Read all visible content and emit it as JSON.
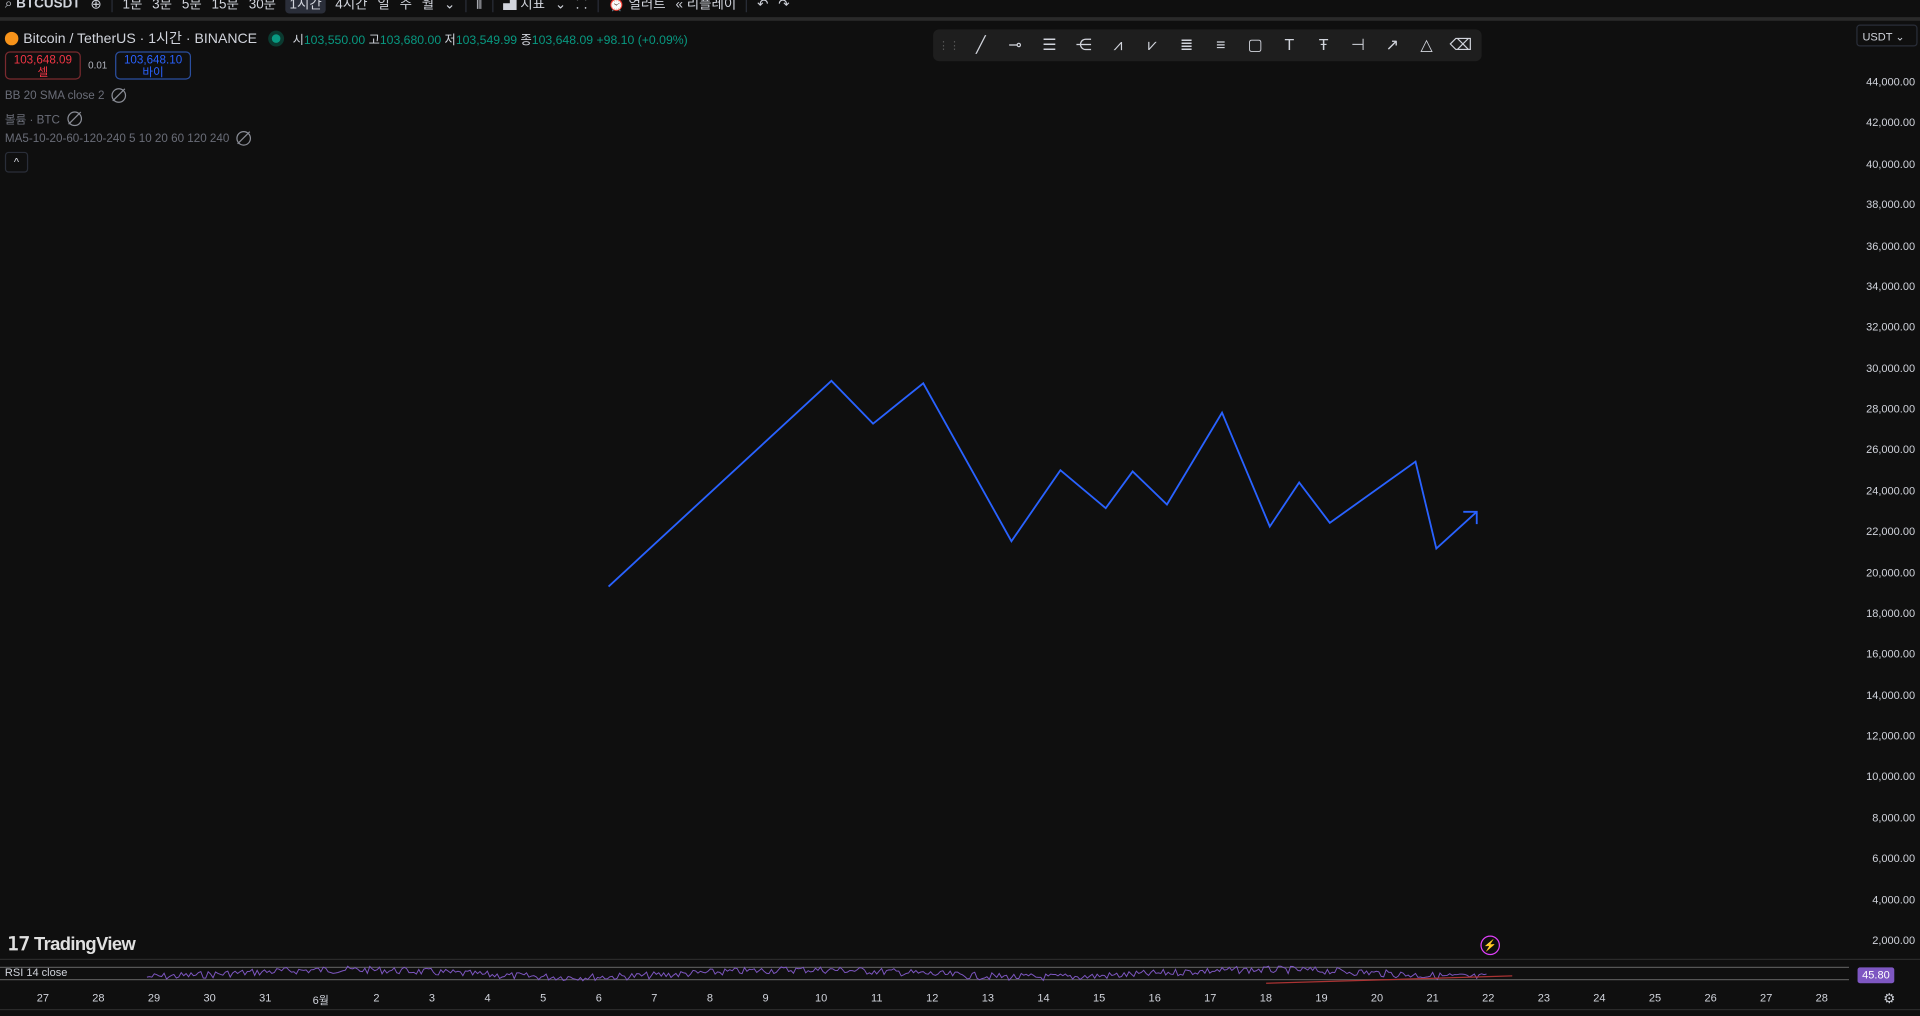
{
  "toolbar": {
    "symbol": "BTCUSDT",
    "intervals": [
      "1분",
      "3분",
      "5분",
      "15분",
      "30분",
      "1시간",
      "4시간",
      "일",
      "주",
      "월"
    ],
    "active_interval": "1시간",
    "indicators_label": "지표",
    "alert_label": "얼러트",
    "replay_label": "리플레이"
  },
  "legend": {
    "title": "Bitcoin / TetherUS · 1시간 · BINANCE",
    "open_label": "시",
    "open": "103,550.00",
    "high_label": "고",
    "high": "103,680.00",
    "low_label": "저",
    "low": "103,549.99",
    "close_label": "종",
    "close": "103,648.09",
    "change": "+98.10 (+0.09%)"
  },
  "trade": {
    "sell_price": "103,648.09",
    "sell_label": "셀",
    "spread": "0.01",
    "buy_price": "103,648.10",
    "buy_label": "바이"
  },
  "indicators": [
    "BB 20 SMA close 2",
    "볼륨 · BTC",
    "MA5-10-20-60-120-240 5 10 20 60 120 240"
  ],
  "currency": "USDT",
  "price_axis": [
    "44,000.00",
    "42,000.00",
    "40,000.00",
    "38,000.00",
    "36,000.00",
    "34,000.00",
    "32,000.00",
    "30,000.00",
    "28,000.00",
    "26,000.00",
    "24,000.00",
    "22,000.00",
    "20,000.00",
    "18,000.00",
    "16,000.00",
    "14,000.00",
    "12,000.00",
    "10,000.00",
    "8,000.00",
    "6,000.00",
    "4,000.00",
    "2,000.00"
  ],
  "date_axis": [
    "27",
    "28",
    "29",
    "30",
    "31",
    "6월",
    "2",
    "3",
    "4",
    "5",
    "6",
    "7",
    "8",
    "9",
    "10",
    "11",
    "12",
    "13",
    "14",
    "15",
    "16",
    "17",
    "18",
    "19",
    "20",
    "21",
    "22",
    "23",
    "24",
    "25",
    "26",
    "27",
    "28"
  ],
  "rsi": {
    "label": "RSI 14 close",
    "value": "45.80"
  },
  "logo": "TradingView",
  "colors": {
    "drawing": "#2962ff",
    "up": "#089981",
    "down": "#f23645",
    "rsi": "#7e57c2"
  }
}
